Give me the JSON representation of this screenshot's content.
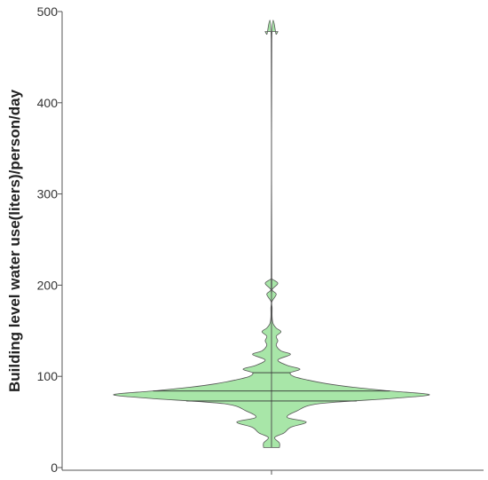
{
  "chart_data": {
    "type": "violin",
    "title": "",
    "xlabel": "",
    "ylabel": "Building level water use(liters)/person/day",
    "ylim": [
      0,
      500
    ],
    "yticks": [
      0,
      100,
      200,
      300,
      400,
      500
    ],
    "grid": false,
    "legend": "none",
    "colors": {
      "fill": "#a8e6a8",
      "stroke": "#555555",
      "axis": "#555555"
    },
    "series": [
      {
        "values_min": 22,
        "values_max": 478,
        "quartiles": [
          73,
          84,
          104
        ],
        "density_profile": [
          [
            22,
            0.05
          ],
          [
            27,
            0.05
          ],
          [
            33,
            0.02
          ],
          [
            38,
            0.08
          ],
          [
            44,
            0.12
          ],
          [
            50,
            0.22
          ],
          [
            55,
            0.1
          ],
          [
            62,
            0.16
          ],
          [
            70,
            0.3
          ],
          [
            76,
            0.78
          ],
          [
            80,
            1.0
          ],
          [
            84,
            0.75
          ],
          [
            88,
            0.52
          ],
          [
            92,
            0.35
          ],
          [
            96,
            0.23
          ],
          [
            100,
            0.14
          ],
          [
            104,
            0.12
          ],
          [
            108,
            0.18
          ],
          [
            112,
            0.1
          ],
          [
            118,
            0.04
          ],
          [
            124,
            0.12
          ],
          [
            128,
            0.06
          ],
          [
            134,
            0.03
          ],
          [
            139,
            0.04
          ],
          [
            144,
            0.03
          ],
          [
            149,
            0.06
          ],
          [
            153,
            0.03
          ],
          [
            158,
            0.01
          ],
          [
            165,
            0.004
          ],
          [
            175,
            0.004
          ],
          [
            182,
            0.003
          ],
          [
            190,
            0.03
          ],
          [
            195,
            0.004
          ],
          [
            202,
            0.04
          ],
          [
            207,
            0.003
          ],
          [
            212,
            0.002
          ],
          [
            470,
            0.002
          ],
          [
            475,
            0.03
          ],
          [
            478,
            0.04
          ]
        ]
      }
    ]
  }
}
